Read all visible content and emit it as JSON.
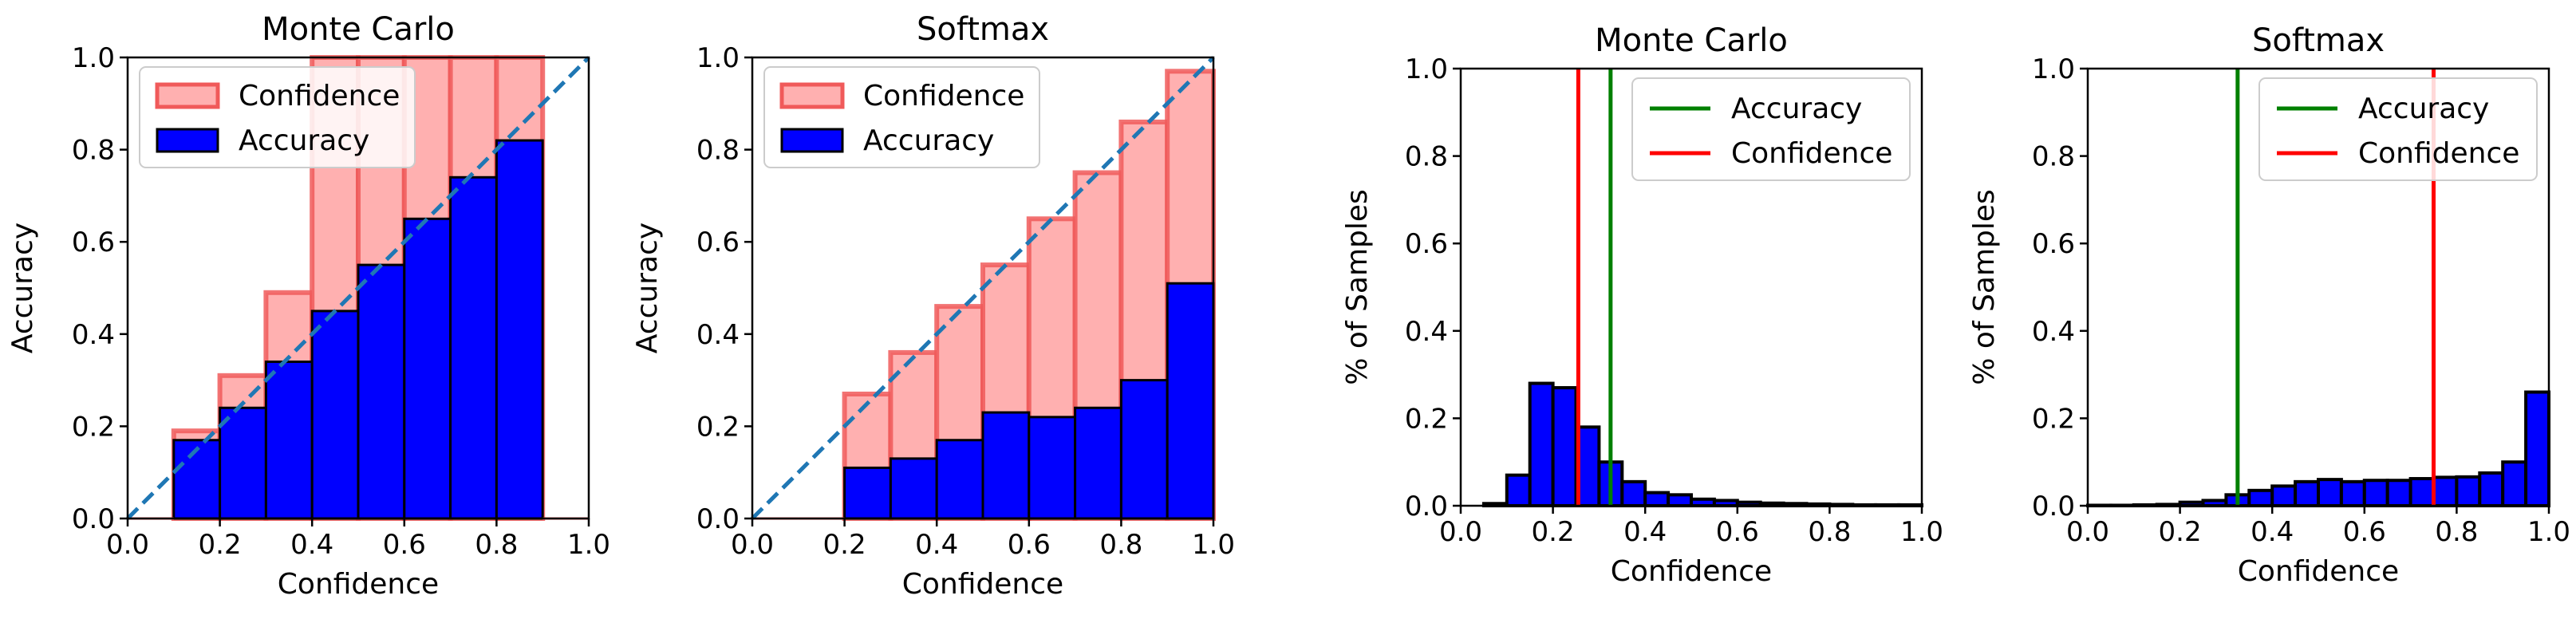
{
  "colors": {
    "confidence_fill": "#ffb0b0",
    "confidence_edge": "#f05a5a",
    "accuracy_fill": "#0000ff",
    "accuracy_edge": "#000000",
    "diagonal": "#1f77b4",
    "accuracy_line": "#008000",
    "confidence_line": "#ff0000",
    "hist_fill": "#0000ff"
  },
  "chart_data": [
    {
      "type": "bar",
      "subtype": "reliability-diagram",
      "title": "Monte Carlo",
      "xlabel": "Confidence",
      "ylabel": "Accuracy",
      "xlim": [
        0,
        1
      ],
      "ylim": [
        0,
        1
      ],
      "xticks": [
        "0.0",
        "0.2",
        "0.4",
        "0.6",
        "0.8",
        "1.0"
      ],
      "yticks": [
        "0.0",
        "0.2",
        "0.4",
        "0.6",
        "0.8",
        "1.0"
      ],
      "legend_position": "upper-left",
      "bin_edges": [
        0.0,
        0.1,
        0.2,
        0.3,
        0.4,
        0.5,
        0.6,
        0.7,
        0.8,
        0.9,
        1.0
      ],
      "series": [
        {
          "name": "Confidence",
          "values": [
            0,
            0.19,
            0.31,
            0.49,
            1.0,
            1.0,
            1.0,
            1.0,
            1.0,
            0
          ]
        },
        {
          "name": "Accuracy",
          "values": [
            0,
            0.17,
            0.24,
            0.34,
            0.45,
            0.55,
            0.65,
            0.74,
            0.82,
            0
          ]
        }
      ],
      "diagonal": true
    },
    {
      "type": "bar",
      "subtype": "reliability-diagram",
      "title": "Softmax",
      "xlabel": "Confidence",
      "ylabel": "Accuracy",
      "xlim": [
        0,
        1
      ],
      "ylim": [
        0,
        1
      ],
      "xticks": [
        "0.0",
        "0.2",
        "0.4",
        "0.6",
        "0.8",
        "1.0"
      ],
      "yticks": [
        "0.0",
        "0.2",
        "0.4",
        "0.6",
        "0.8",
        "1.0"
      ],
      "legend_position": "upper-left",
      "bin_edges": [
        0.0,
        0.1,
        0.2,
        0.3,
        0.4,
        0.5,
        0.6,
        0.7,
        0.8,
        0.9,
        1.0
      ],
      "series": [
        {
          "name": "Confidence",
          "values": [
            0,
            0,
            0.27,
            0.36,
            0.46,
            0.55,
            0.65,
            0.75,
            0.86,
            0.97
          ]
        },
        {
          "name": "Accuracy",
          "values": [
            0,
            0,
            0.11,
            0.13,
            0.17,
            0.23,
            0.22,
            0.24,
            0.3,
            0.51
          ]
        }
      ],
      "diagonal": true
    },
    {
      "type": "bar",
      "subtype": "histogram",
      "title": "Monte Carlo",
      "xlabel": "Confidence",
      "ylabel": "% of Samples",
      "xlim": [
        0,
        1
      ],
      "ylim": [
        0,
        1
      ],
      "xticks": [
        "0.0",
        "0.2",
        "0.4",
        "0.6",
        "0.8",
        "1.0"
      ],
      "yticks": [
        "0.0",
        "0.2",
        "0.4",
        "0.6",
        "0.8",
        "1.0"
      ],
      "legend_position": "upper-right",
      "bin_width": 0.05,
      "values": [
        0,
        0.005,
        0.07,
        0.28,
        0.27,
        0.18,
        0.1,
        0.055,
        0.03,
        0.025,
        0.015,
        0.012,
        0.008,
        0.006,
        0.005,
        0.004,
        0.003,
        0.002,
        0.002,
        0.002
      ],
      "vlines": [
        {
          "name": "Accuracy",
          "x": 0.325
        },
        {
          "name": "Confidence",
          "x": 0.255
        }
      ]
    },
    {
      "type": "bar",
      "subtype": "histogram",
      "title": "Softmax",
      "xlabel": "Confidence",
      "ylabel": "% of Samples",
      "xlim": [
        0,
        1
      ],
      "ylim": [
        0,
        1
      ],
      "xticks": [
        "0.0",
        "0.2",
        "0.4",
        "0.6",
        "0.8",
        "1.0"
      ],
      "yticks": [
        "0.0",
        "0.2",
        "0.4",
        "0.6",
        "0.8",
        "1.0"
      ],
      "legend_position": "upper-right",
      "bin_width": 0.05,
      "values": [
        0.001,
        0.001,
        0.002,
        0.003,
        0.008,
        0.012,
        0.025,
        0.035,
        0.045,
        0.055,
        0.06,
        0.055,
        0.058,
        0.058,
        0.062,
        0.065,
        0.066,
        0.075,
        0.1,
        0.26
      ],
      "vlines": [
        {
          "name": "Accuracy",
          "x": 0.325
        },
        {
          "name": "Confidence",
          "x": 0.75
        }
      ]
    }
  ]
}
